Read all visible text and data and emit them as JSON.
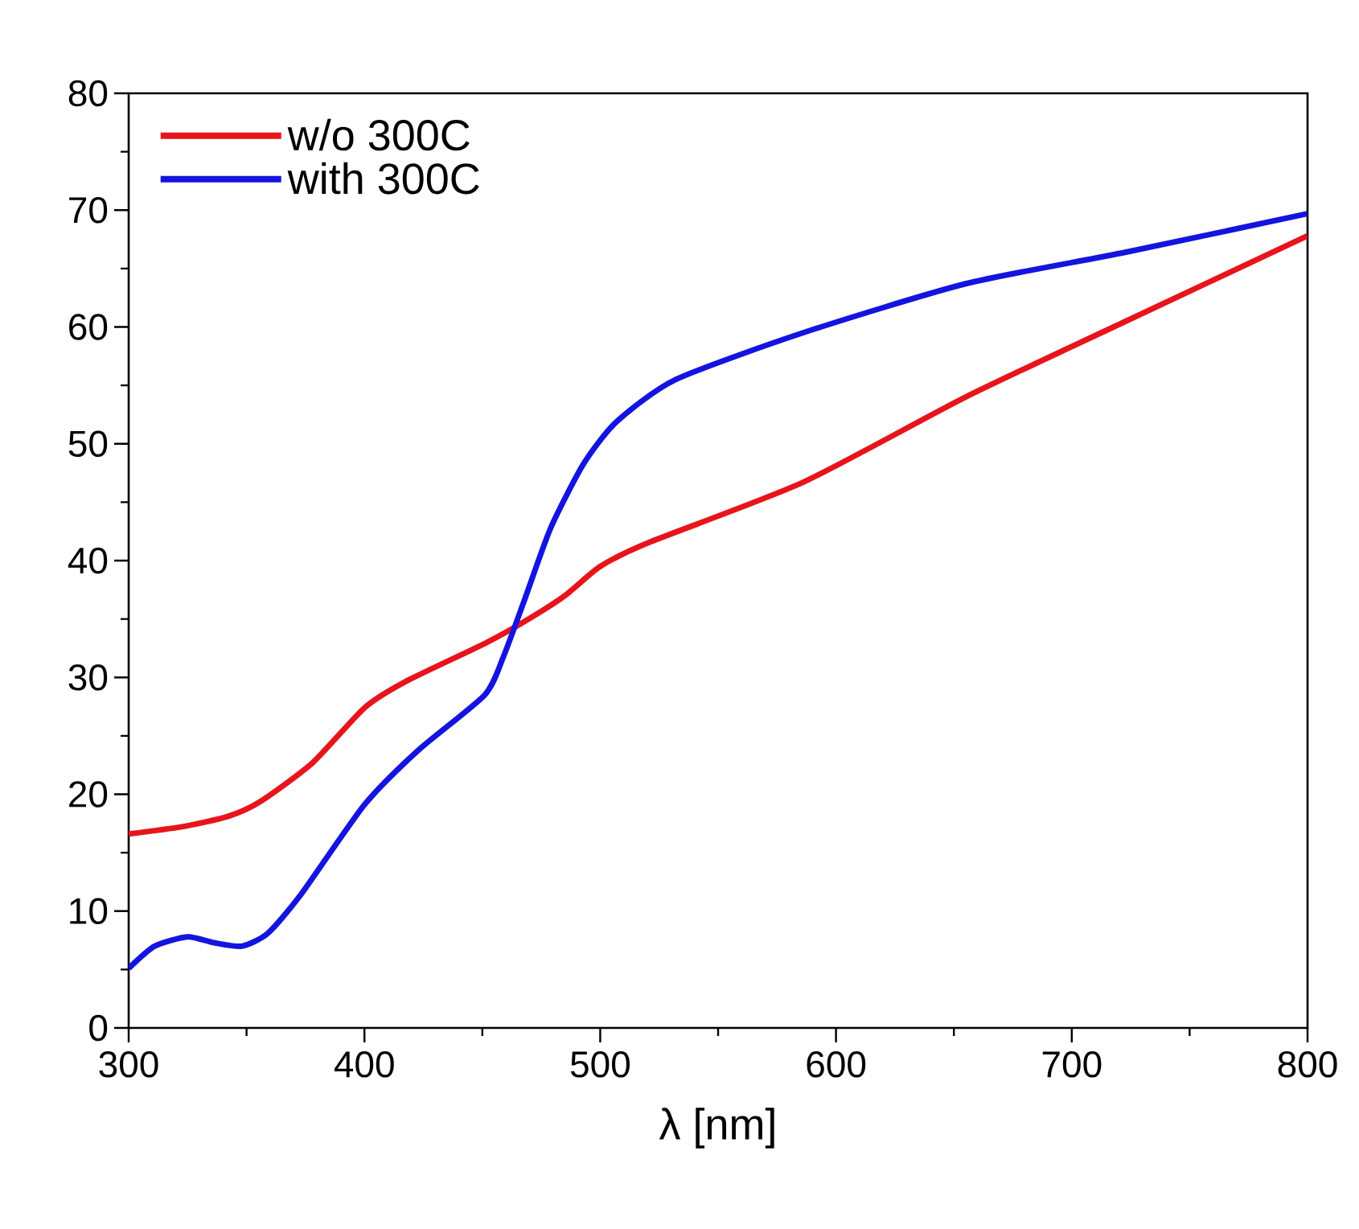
{
  "chart_data": {
    "type": "line",
    "xlabel": "λ [nm]",
    "xlim": [
      300,
      800
    ],
    "xticks": [
      300,
      400,
      500,
      600,
      700,
      800
    ],
    "ylim": [
      0,
      80
    ],
    "yticks": [
      0,
      10,
      20,
      30,
      40,
      50,
      60,
      70,
      80
    ],
    "legend": "top left",
    "marker": "none",
    "line_style": "solid",
    "grid": false,
    "series": [
      {
        "name": "w/o 300C",
        "color": "#e8141c",
        "x": [
          300,
          322,
          342,
          356,
          378,
          400,
          417,
          451,
          468,
          485,
          500,
          520,
          586,
          655,
          723,
          800
        ],
        "values": [
          16.6,
          17.2,
          18.1,
          19.4,
          22.7,
          27.4,
          29.6,
          32.9,
          34.8,
          37.0,
          39.5,
          41.5,
          46.7,
          54.0,
          60.5,
          67.8
        ]
      },
      {
        "name": "with 300C",
        "color": "#1414e0",
        "x": [
          300,
          311,
          325,
          336,
          348,
          359,
          373,
          400,
          423,
          451,
          459,
          468,
          479,
          493,
          507,
          532,
          586,
          655,
          723,
          800
        ],
        "values": [
          5.1,
          7.0,
          7.8,
          7.3,
          7.0,
          8.1,
          11.4,
          19.1,
          23.8,
          28.5,
          31.8,
          36.7,
          42.8,
          48.3,
          51.9,
          55.5,
          59.5,
          63.7,
          66.4,
          69.7
        ]
      }
    ]
  }
}
